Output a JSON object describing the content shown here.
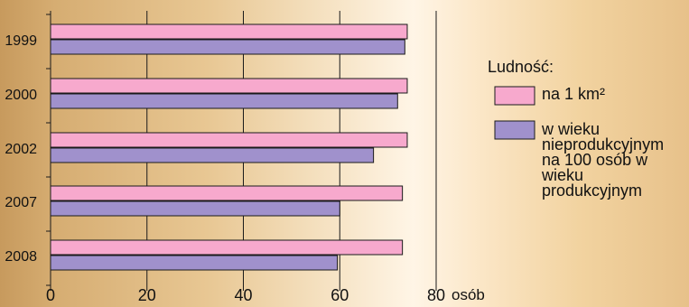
{
  "chart_data": {
    "type": "bar",
    "orientation": "horizontal",
    "categories": [
      "1999",
      "2000",
      "2002",
      "2007",
      "2008"
    ],
    "series": [
      {
        "name": "na 1 km²",
        "color": "#f7a9cd",
        "values": [
          74,
          74,
          74,
          73,
          73
        ]
      },
      {
        "name": "w wieku nieprodukcyjnym na 100 osób w wieku produkcyjnym",
        "color": "#a091cc",
        "values": [
          73.5,
          72,
          67,
          60,
          59.5
        ]
      }
    ],
    "xlim": [
      0,
      80
    ],
    "x_ticks": [
      0,
      20,
      40,
      60,
      80
    ],
    "xunit": "osób",
    "grid": true,
    "legend": {
      "title": "Ludność:",
      "placement": "right"
    }
  }
}
